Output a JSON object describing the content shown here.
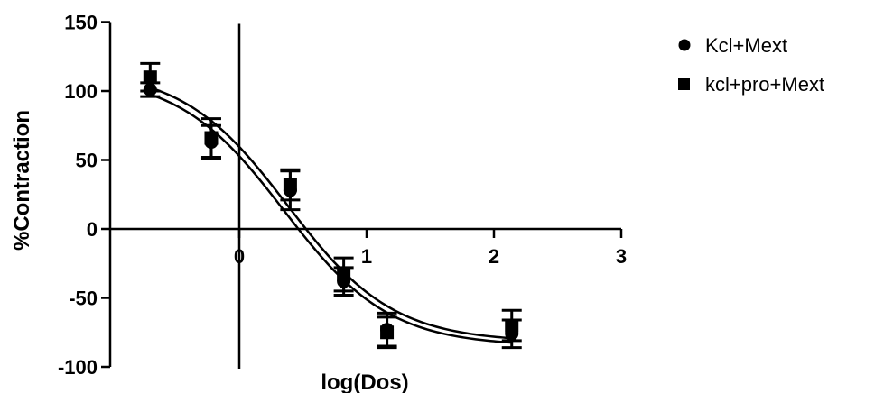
{
  "chart_data": {
    "type": "scatter",
    "title": "",
    "xlabel": "log(Dos)",
    "ylabel": "%Contraction",
    "xlim": [
      -0.8,
      3
    ],
    "ylim": [
      -100,
      150
    ],
    "x_ticks": [
      {
        "value": 0,
        "label": "0"
      },
      {
        "value": 1,
        "label": "1"
      },
      {
        "value": 2,
        "label": "2"
      },
      {
        "value": 3,
        "label": "3"
      }
    ],
    "y_ticks": [
      {
        "value": 150,
        "label": "150"
      },
      {
        "value": 100,
        "label": "100"
      },
      {
        "value": 50,
        "label": "50"
      },
      {
        "value": 0,
        "label": "0"
      },
      {
        "value": -50,
        "label": "-50"
      },
      {
        "value": -100,
        "label": "-100"
      }
    ],
    "grid": false,
    "legend_position": "top-right",
    "series": [
      {
        "name": "Kcl+Mext",
        "marker": "circle",
        "color": "#000000",
        "points": [
          {
            "x": -0.7,
            "y": 101,
            "err": 5
          },
          {
            "x": -0.22,
            "y": 63,
            "err": 12
          },
          {
            "x": 0.4,
            "y": 28,
            "err": 14
          },
          {
            "x": 0.82,
            "y": -38,
            "err": 10
          },
          {
            "x": 1.16,
            "y": -73,
            "err": 12
          },
          {
            "x": 2.14,
            "y": -76,
            "err": 10
          }
        ],
        "fit": {
          "top": 112,
          "bottom": -85,
          "logec50": 0.35,
          "hill": -1.05
        }
      },
      {
        "name": "kcl+pro+Mext",
        "marker": "square",
        "color": "#000000",
        "points": [
          {
            "x": -0.7,
            "y": 110,
            "err": 10
          },
          {
            "x": -0.22,
            "y": 66,
            "err": 14
          },
          {
            "x": 0.4,
            "y": 32,
            "err": 11
          },
          {
            "x": 0.82,
            "y": -33,
            "err": 12
          },
          {
            "x": 1.16,
            "y": -75,
            "err": 11
          },
          {
            "x": 2.14,
            "y": -70,
            "err": 11
          }
        ],
        "fit": {
          "top": 116,
          "bottom": -82,
          "logec50": 0.38,
          "hill": -1.05
        }
      }
    ]
  }
}
